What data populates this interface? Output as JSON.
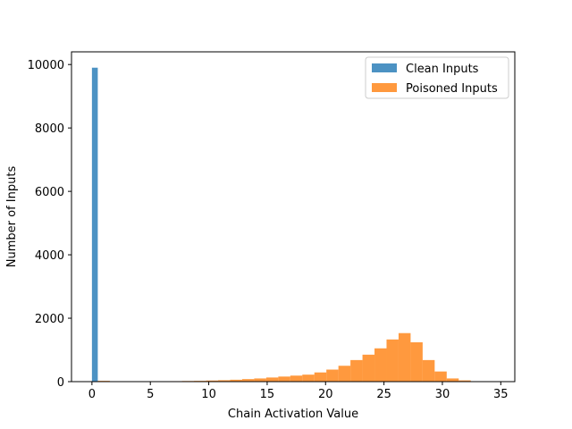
{
  "chart_data": {
    "type": "bar",
    "title": "",
    "xlabel": "Chain Activation Value",
    "ylabel": "Number of Inputs",
    "xlim": [
      -1.75,
      36.2
    ],
    "ylim": [
      0,
      10400
    ],
    "xticks": [
      0,
      5,
      10,
      15,
      20,
      25,
      30,
      35
    ],
    "yticks": [
      0,
      2000,
      4000,
      6000,
      8000,
      10000
    ],
    "grid": false,
    "legend": "upper right",
    "series": [
      {
        "name": "Clean Inputs",
        "color": "#1f77b4",
        "opacity": 0.8,
        "bin_edges": [
          0.0,
          0.5
        ],
        "values": [
          9900
        ]
      },
      {
        "name": "Poisoned Inputs",
        "color": "#ff7f0e",
        "opacity": 0.8,
        "bin_edges": [
          0.5,
          1.53,
          2.56,
          3.59,
          4.62,
          5.65,
          6.68,
          7.71,
          8.74,
          9.77,
          10.8,
          11.83,
          12.86,
          13.89,
          14.92,
          15.95,
          16.98,
          18.01,
          19.04,
          20.07,
          21.1,
          22.13,
          23.16,
          24.19,
          25.22,
          26.25,
          27.28,
          28.31,
          29.34,
          30.37,
          31.4,
          32.43,
          33.46
        ],
        "values": [
          25,
          0,
          0,
          0,
          0,
          10,
          15,
          20,
          25,
          35,
          45,
          60,
          80,
          100,
          130,
          160,
          190,
          220,
          290,
          380,
          500,
          680,
          850,
          1050,
          1330,
          1530,
          1240,
          680,
          320,
          100,
          40,
          10
        ]
      }
    ]
  }
}
